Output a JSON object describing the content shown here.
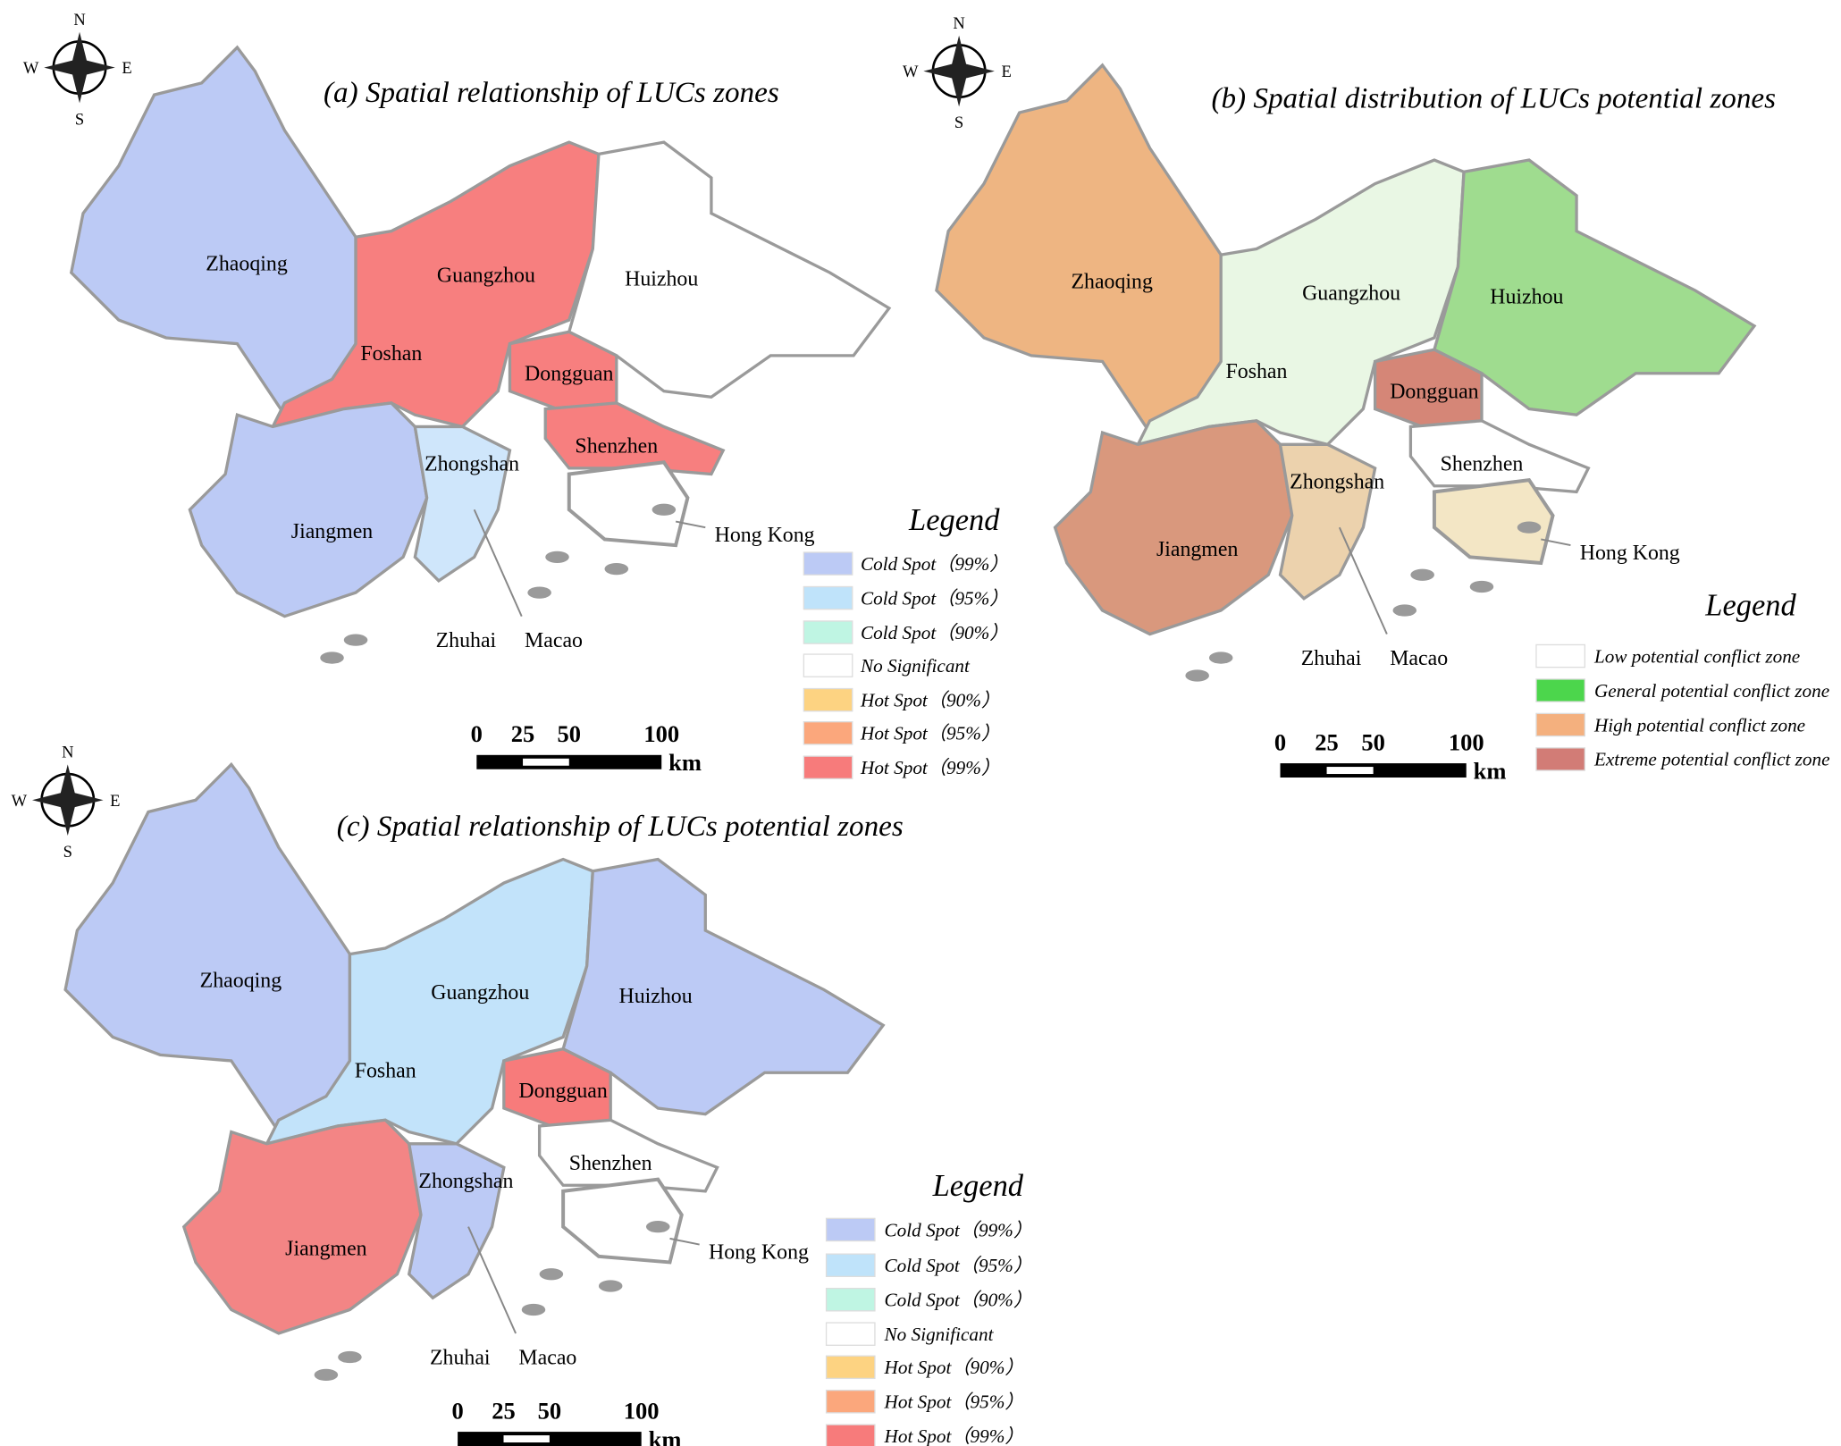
{
  "panels": [
    {
      "title": "(a) Spatial relationship of LUCs zones",
      "compass": {
        "n": "N",
        "s": "S",
        "e": "E",
        "w": "W"
      },
      "cities": [
        "Zhaoqing",
        "Guangzhou",
        "Huizhou",
        "Foshan",
        "Dongguan",
        "Shenzhen",
        "Zhongshan",
        "Jiangmen",
        "Hong Kong",
        "Zhuhai",
        "Macao"
      ],
      "legend": {
        "title": "Legend",
        "items": [
          "Cold Spot（99%）",
          "Cold Spot（95%）",
          "Cold Spot（90%）",
          "No Significant",
          "Hot Spot（90%）",
          "Hot Spot（95%）",
          "Hot Spot（99%）"
        ]
      },
      "scale": {
        "ticks": [
          0,
          25,
          50,
          100
        ],
        "unit": "km"
      }
    },
    {
      "title": "(b) Spatial distribution of LUCs potential zones",
      "compass": {
        "n": "N",
        "s": "S",
        "e": "E",
        "w": "W"
      },
      "cities": [
        "Zhaoqing",
        "Guangzhou",
        "Huizhou",
        "Foshan",
        "Dongguan",
        "Shenzhen",
        "Zhongshan",
        "Jiangmen",
        "Hong Kong",
        "Zhuhai",
        "Macao"
      ],
      "legend": {
        "title": "Legend",
        "items": [
          "Low potential conflict zone",
          "General potential conflict zone",
          "High potential conflict zone",
          "Extreme potential conflict zone"
        ]
      },
      "scale": {
        "ticks": [
          0,
          25,
          50,
          100
        ],
        "unit": "km"
      }
    },
    {
      "title": "(c) Spatial relationship of LUCs potential zones",
      "compass": {
        "n": "N",
        "s": "S",
        "e": "E",
        "w": "W"
      },
      "cities": [
        "Zhaoqing",
        "Guangzhou",
        "Huizhou",
        "Foshan",
        "Dongguan",
        "Shenzhen",
        "Zhongshan",
        "Jiangmen",
        "Hong Kong",
        "Zhuhai",
        "Macao"
      ],
      "legend": {
        "title": "Legend",
        "items": [
          "Cold Spot（99%）",
          "Cold Spot（95%）",
          "Cold Spot（90%）",
          "No Significant",
          "Hot Spot（90%）",
          "Hot Spot（95%）",
          "Hot Spot（99%）"
        ]
      },
      "scale": {
        "ticks": [
          0,
          25,
          50,
          100
        ],
        "unit": "km"
      }
    }
  ]
}
